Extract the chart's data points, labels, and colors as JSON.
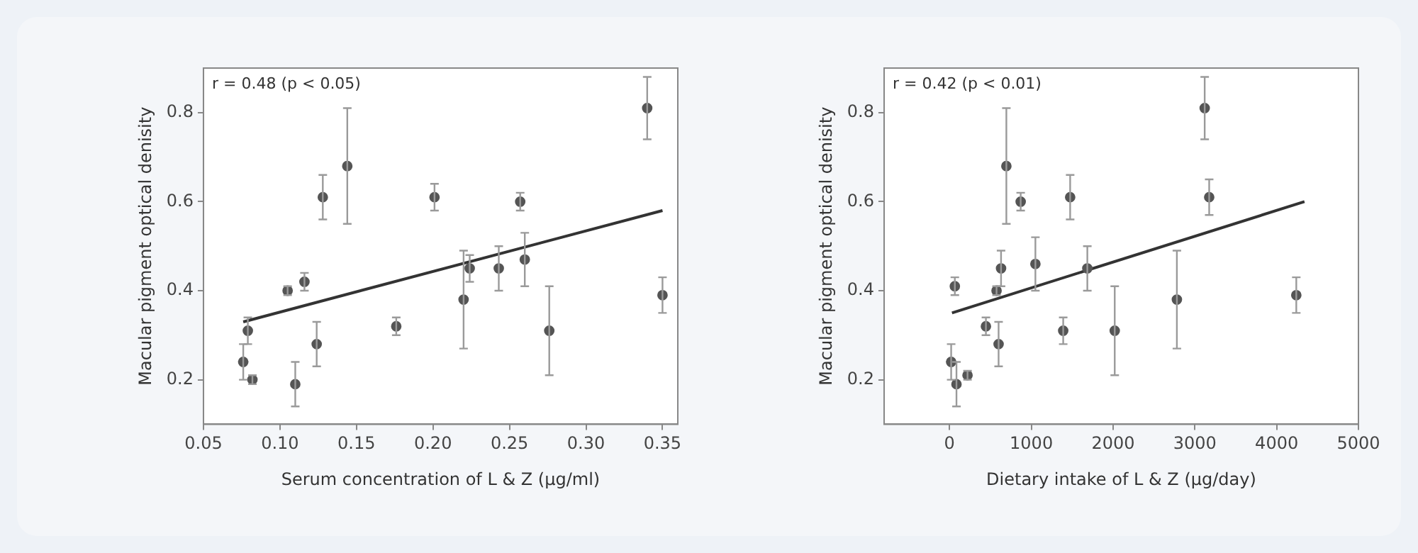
{
  "chart_data": [
    {
      "type": "scatter",
      "xlabel": "Serum concentration of L & Z (μg/ml)",
      "ylabel": "Macular pigment optical denisity",
      "annotations": [
        "r = 0.48 (p < 0.05)"
      ],
      "xlim": [
        0.05,
        0.36
      ],
      "xticks": [
        0.05,
        {
          "value": 0.1,
          "label": "0.10"
        },
        0.15,
        {
          "value": 0.2,
          "label": "0.20"
        },
        0.25,
        {
          "value": 0.3,
          "label": "0.30"
        },
        0.35
      ],
      "ylim": [
        0.1,
        0.9
      ],
      "yticks": [
        0.2,
        0.4,
        0.6,
        0.8
      ],
      "grid": false,
      "legend": false,
      "marker": "circle",
      "series": [
        {
          "type": "scatter",
          "color": "#555555",
          "x": [
            0.076,
            0.079,
            0.082,
            0.105,
            0.11,
            0.116,
            0.124,
            0.128,
            0.144,
            0.176,
            0.201,
            0.22,
            0.224,
            0.243,
            0.257,
            0.26,
            0.276,
            0.34,
            0.35
          ],
          "values": [
            0.24,
            0.31,
            0.2,
            0.4,
            0.19,
            0.42,
            0.28,
            0.61,
            0.68,
            0.32,
            0.61,
            0.38,
            0.45,
            0.45,
            0.6,
            0.47,
            0.31,
            0.81,
            0.39
          ],
          "errors": [
            0.04,
            0.03,
            0.01,
            0.01,
            0.05,
            0.02,
            0.05,
            0.05,
            0.13,
            0.02,
            0.03,
            0.11,
            0.03,
            0.05,
            0.02,
            0.06,
            0.1,
            0.07,
            0.04
          ]
        },
        {
          "type": "line",
          "color": "#333333",
          "marker": "none",
          "x": [
            0.076,
            0.35
          ],
          "values": [
            0.33,
            0.58
          ]
        }
      ]
    },
    {
      "type": "scatter",
      "xlabel": "Dietary intake of L & Z (μg/day)",
      "ylabel": "Macular pigment optical denisity",
      "annotations": [
        "r = 0.42 (p < 0.01)"
      ],
      "xlim": [
        -800,
        5000
      ],
      "xticks": [
        0,
        1000,
        2000,
        3000,
        4000,
        5000
      ],
      "ylim": [
        0.1,
        0.9
      ],
      "yticks": [
        0.2,
        0.4,
        0.6,
        0.8
      ],
      "grid": false,
      "legend": false,
      "marker": "circle",
      "series": [
        {
          "type": "scatter",
          "color": "#555555",
          "x": [
            20,
            85,
            65,
            220,
            445,
            575,
            600,
            630,
            695,
            870,
            1050,
            1390,
            1475,
            1685,
            2020,
            2780,
            3120,
            3175,
            4240
          ],
          "values": [
            0.24,
            0.19,
            0.41,
            0.21,
            0.32,
            0.4,
            0.28,
            0.45,
            0.68,
            0.6,
            0.46,
            0.31,
            0.61,
            0.45,
            0.31,
            0.38,
            0.81,
            0.61,
            0.39
          ],
          "errors": [
            0.04,
            0.05,
            0.02,
            0.01,
            0.02,
            0.01,
            0.05,
            0.04,
            0.13,
            0.02,
            0.06,
            0.03,
            0.05,
            0.05,
            0.1,
            0.11,
            0.07,
            0.04,
            0.04
          ]
        },
        {
          "type": "line",
          "color": "#333333",
          "marker": "none",
          "x": [
            30,
            4340
          ],
          "values": [
            0.35,
            0.6
          ]
        }
      ]
    }
  ]
}
